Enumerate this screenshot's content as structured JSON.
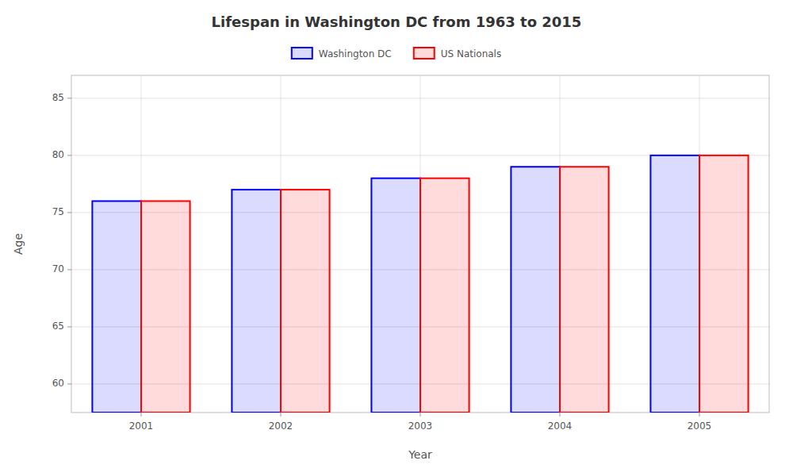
{
  "chart_data": {
    "type": "bar",
    "title": "Lifespan in Washington DC from 1963 to 2015",
    "xlabel": "Year",
    "ylabel": "Age",
    "categories": [
      "2001",
      "2002",
      "2003",
      "2004",
      "2005"
    ],
    "series": [
      {
        "name": "Washington DC",
        "color": "#0000ff",
        "values": [
          76,
          77,
          78,
          79,
          80
        ]
      },
      {
        "name": "US Nationals",
        "color": "#ff0000",
        "values": [
          76,
          77,
          78,
          79,
          80
        ]
      }
    ],
    "ylim": [
      57.5,
      87
    ],
    "yticks": [
      60,
      65,
      70,
      75,
      80,
      85
    ],
    "grid": true,
    "legend": "top"
  }
}
